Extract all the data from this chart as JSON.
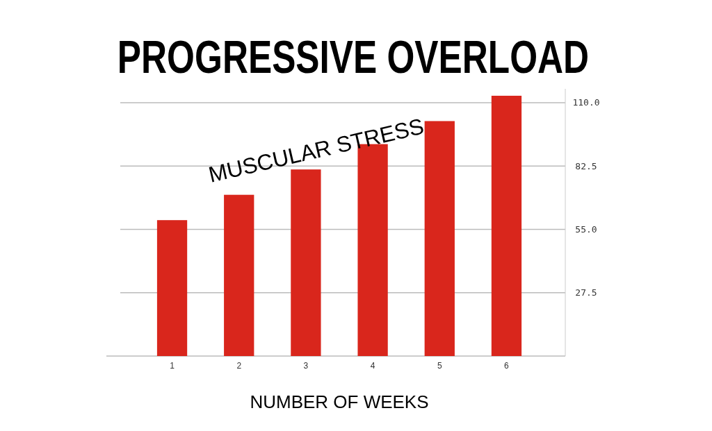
{
  "chart_data": {
    "type": "bar",
    "title": "PROGRESSIVE OVERLOAD",
    "xlabel": "NUMBER OF WEEKS",
    "annotations": [
      "MUSCULAR STRESS"
    ],
    "categories": [
      "1",
      "2",
      "3",
      "4",
      "5",
      "6"
    ],
    "values": [
      59,
      70,
      81,
      92,
      102,
      113
    ],
    "color": "#d9261c",
    "ylim": [
      0,
      116
    ],
    "yticks": [
      {
        "value": 27.5,
        "label": "27.5"
      },
      {
        "value": 55,
        "label": "55.0"
      },
      {
        "value": 82.5,
        "label": "82.5"
      },
      {
        "value": 110,
        "label": "110.0"
      }
    ],
    "grid": "y"
  }
}
